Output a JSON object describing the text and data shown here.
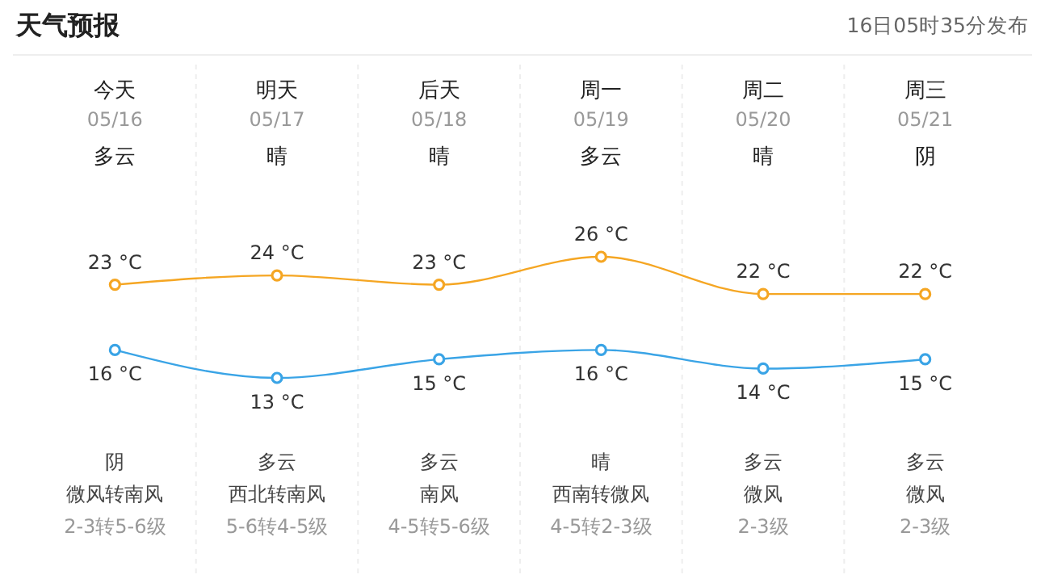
{
  "chart_data": {
    "type": "line",
    "title": "天气预报",
    "subtitle": "16日05时35分发布",
    "categories": [
      "今天",
      "明天",
      "后天",
      "周一",
      "周二",
      "周三"
    ],
    "series": [
      {
        "color": "#f5a623",
        "values": [
          23,
          24,
          23,
          26,
          22,
          22
        ],
        "value_labels": [
          "23 °C",
          "24 °C",
          "23 °C",
          "26 °C",
          "22 °C",
          "22 °C"
        ]
      },
      {
        "color": "#3aa4e6",
        "values": [
          16,
          13,
          15,
          16,
          14,
          15
        ],
        "value_labels": [
          "16 °C",
          "13 °C",
          "15 °C",
          "16 °C",
          "14 °C",
          "15 °C"
        ]
      }
    ],
    "marker": "circle",
    "grid": "x",
    "annotations": [
      "05/16",
      "05/17",
      "05/18",
      "05/19",
      "05/20",
      "05/21",
      "多云",
      "晴",
      "晴",
      "多云",
      "晴",
      "阴",
      "阴",
      "多云",
      "多云",
      "晴",
      "多云",
      "多云",
      "微风转南风",
      "西北转南风",
      "南风",
      "西南转微风",
      "微风",
      "微风",
      "2-3转5-6级",
      "5-6转4-5级",
      "4-5转5-6级",
      "4-5转2-3级",
      "2-3级",
      "2-3级"
    ]
  }
}
